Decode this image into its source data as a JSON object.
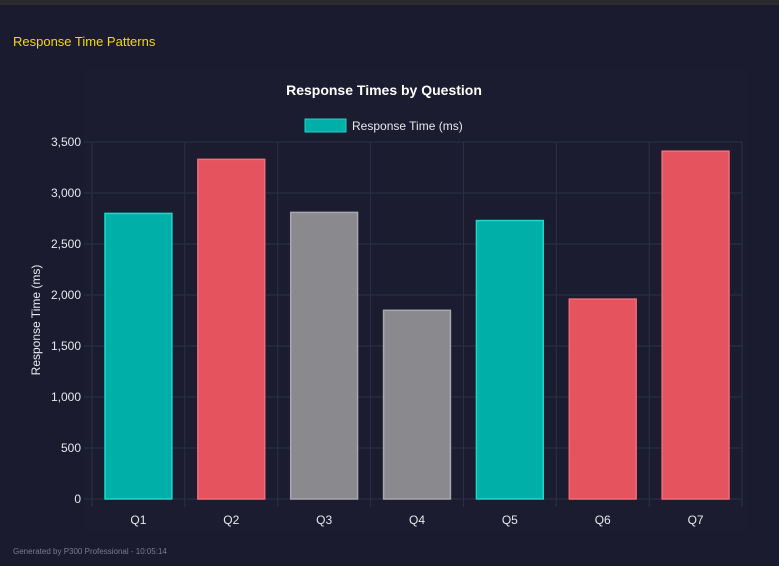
{
  "header": {
    "section_title": "Response Time Patterns"
  },
  "footer": {
    "text": "Generated by P300 Professional - 10:05:14"
  },
  "chart_data": {
    "type": "bar",
    "title": "Response Times by Question",
    "xlabel": "",
    "ylabel": "Response Time (ms)",
    "ylim": [
      0,
      3500
    ],
    "yticks": [
      0,
      500,
      1000,
      1500,
      2000,
      2500,
      3000,
      3500
    ],
    "ytick_labels": [
      "0",
      "500",
      "1,000",
      "1,500",
      "2,000",
      "2,500",
      "3,000",
      "3,500"
    ],
    "grid": true,
    "legend": {
      "position": "top",
      "entries": [
        "Response Time (ms)"
      ],
      "color": "#00b0a8"
    },
    "categories": [
      "Q1",
      "Q2",
      "Q3",
      "Q4",
      "Q5",
      "Q6",
      "Q7"
    ],
    "series": [
      {
        "name": "Response Time (ms)",
        "values": [
          2800,
          3330,
          2810,
          1850,
          2730,
          1960,
          3410
        ]
      }
    ],
    "bar_colors": [
      "#00b0a8",
      "#e5535e",
      "#8a898e",
      "#8a898e",
      "#00b0a8",
      "#e5535e",
      "#e5535e"
    ],
    "bar_border_colors": [
      "#1fd6cc",
      "#f06e78",
      "#a8a8ae",
      "#a8a8ae",
      "#1fd6cc",
      "#f06e78",
      "#f06e78"
    ]
  }
}
